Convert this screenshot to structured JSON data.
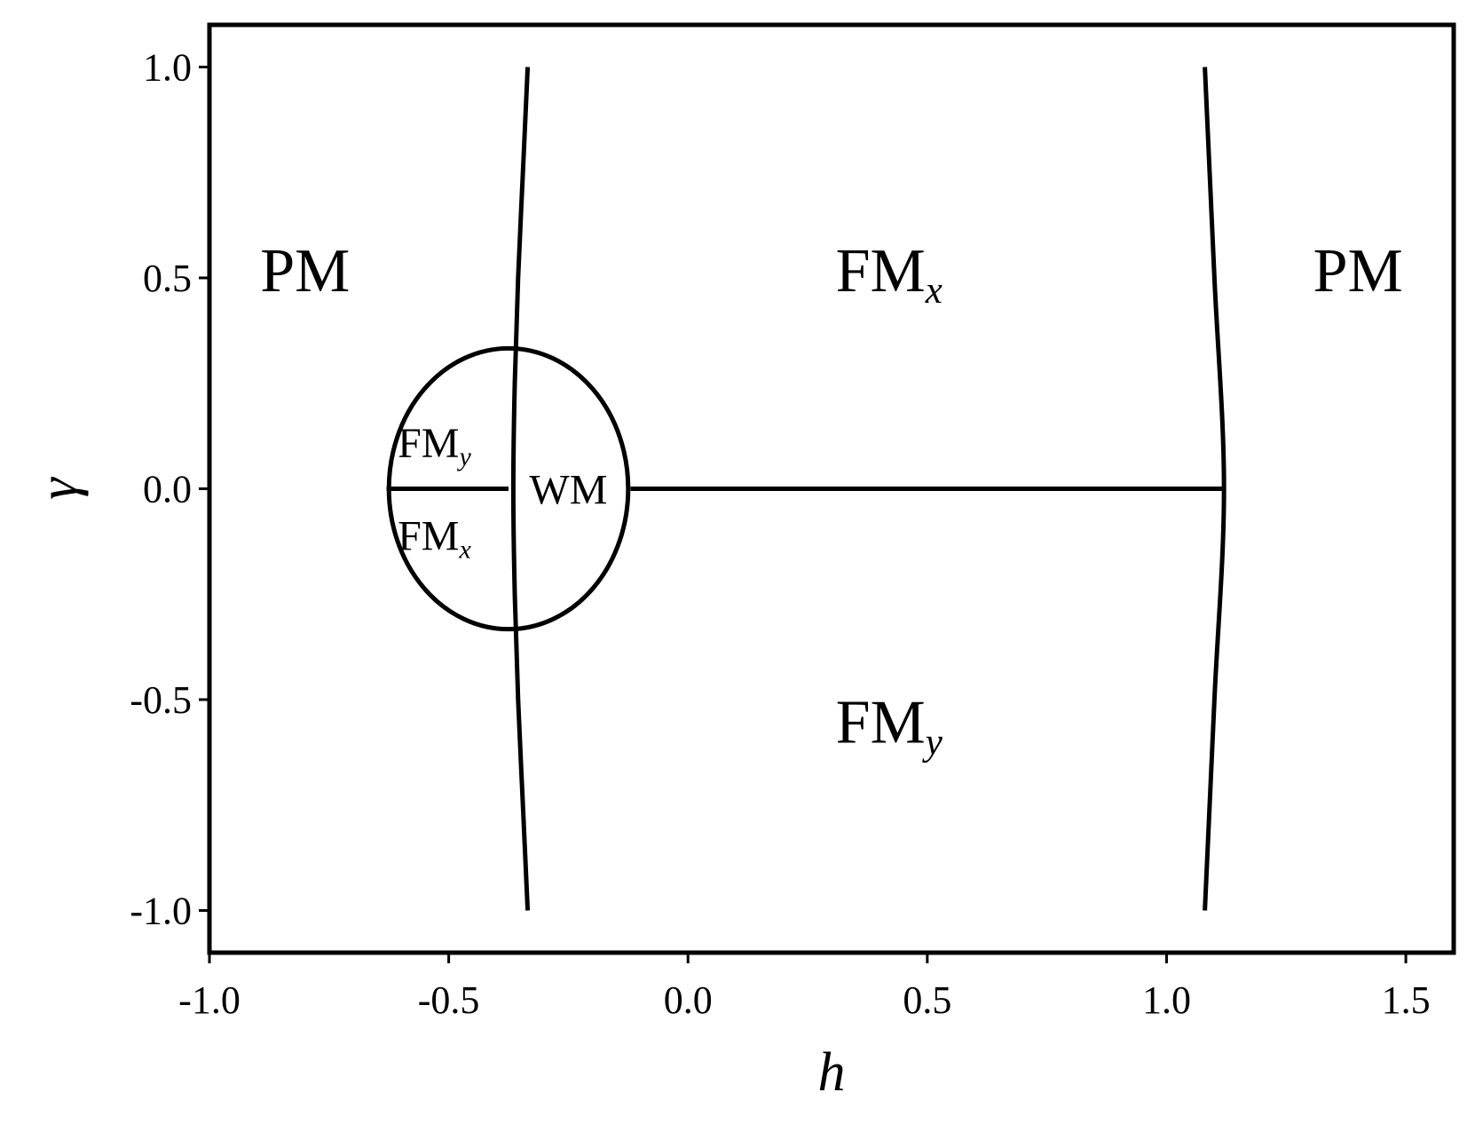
{
  "chart_data": {
    "type": "line",
    "title": "",
    "xlabel": "h",
    "ylabel": "γ",
    "xlim": [
      -1.0,
      1.6
    ],
    "ylim": [
      -1.1,
      1.1
    ],
    "xticks": [
      -1.0,
      -0.5,
      0.0,
      0.5,
      1.0,
      1.5
    ],
    "xtick_labels": [
      "-1.0",
      "-0.5",
      "0.0",
      "0.5",
      "1.0",
      "1.5"
    ],
    "yticks": [
      -1.0,
      -0.5,
      0.0,
      0.5,
      1.0
    ],
    "ytick_labels": [
      "-1.0",
      "-0.5",
      "0.0",
      "0.5",
      "1.0"
    ],
    "grid": false,
    "series": [
      {
        "points": [
          [
            -0.335,
            -1.0
          ],
          [
            -0.345,
            -0.75
          ],
          [
            -0.355,
            -0.5
          ],
          [
            -0.362,
            -0.25
          ],
          [
            -0.365,
            0.0
          ],
          [
            -0.362,
            0.25
          ],
          [
            -0.355,
            0.5
          ],
          [
            -0.345,
            0.75
          ],
          [
            -0.335,
            1.0
          ]
        ]
      },
      {
        "points": [
          [
            1.08,
            -1.0
          ],
          [
            1.1,
            -0.5
          ],
          [
            1.12,
            0.0
          ],
          [
            1.1,
            0.5
          ],
          [
            1.08,
            1.0
          ]
        ]
      },
      {
        "points": [
          [
            -0.63,
            0.0
          ],
          [
            -0.375,
            0.0
          ]
        ]
      },
      {
        "points": [
          [
            -0.12,
            0.0
          ],
          [
            1.12,
            0.0
          ]
        ]
      },
      {
        "shape": "ellipse",
        "center": [
          -0.375,
          0.0
        ],
        "radius_h": 0.25,
        "radius_gamma": 0.333
      }
    ],
    "annotations": [
      {
        "main": "PM",
        "sub": "",
        "x": -0.8,
        "y": 0.52,
        "size": "large"
      },
      {
        "main": "FM",
        "sub": "x",
        "x": 0.42,
        "y": 0.52,
        "size": "large"
      },
      {
        "main": "PM",
        "sub": "",
        "x": 1.4,
        "y": 0.52,
        "size": "large"
      },
      {
        "main": "FM",
        "sub": "y",
        "x": 0.42,
        "y": -0.55,
        "size": "large"
      },
      {
        "main": "FM",
        "sub": "y",
        "x": -0.53,
        "y": 0.11,
        "size": "small"
      },
      {
        "main": "FM",
        "sub": "x",
        "x": -0.53,
        "y": -0.11,
        "size": "small"
      },
      {
        "main": "WM",
        "sub": "",
        "x": -0.25,
        "y": 0.0,
        "size": "small"
      }
    ]
  }
}
